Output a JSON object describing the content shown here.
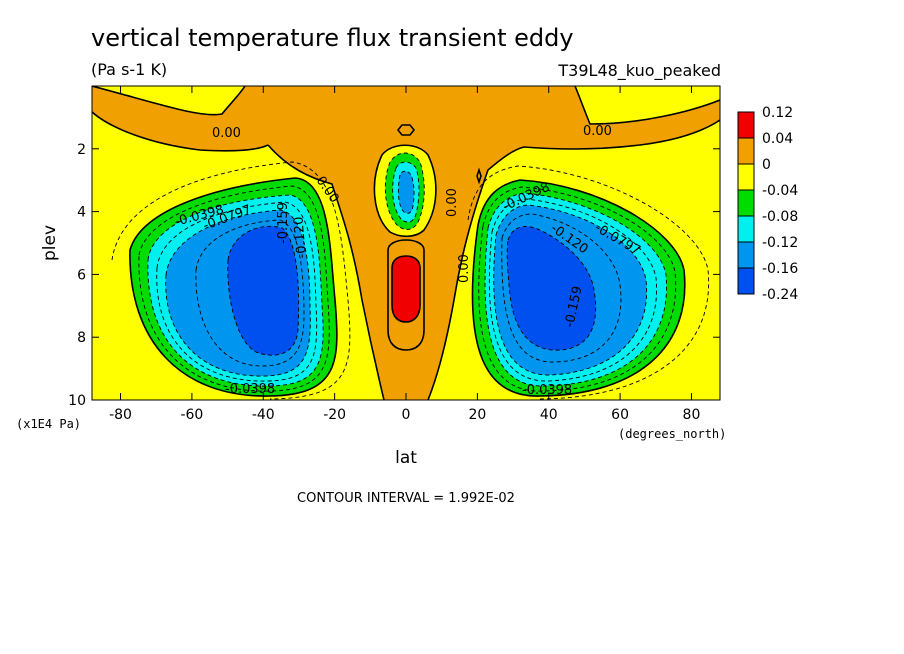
{
  "chart_data": {
    "type": "contour",
    "title": "vertical temperature flux transient eddy",
    "units": "(Pa s-1 K)",
    "run_label": "T39L48_kuo_peaked",
    "xlabel": "lat",
    "ylabel": "plev",
    "x_unit": "(degrees_north)",
    "y_unit": "(x1E4 Pa)",
    "xlim": [
      -88,
      88
    ],
    "ylim": [
      10,
      0
    ],
    "x_ticks": [
      -80,
      -60,
      -40,
      -20,
      0,
      20,
      40,
      60,
      80
    ],
    "x_tick_labels": [
      "-80",
      "-60",
      "-40",
      "-20",
      "0",
      "20",
      "40",
      "60",
      "80"
    ],
    "y_ticks": [
      2,
      4,
      6,
      8,
      10
    ],
    "y_tick_labels": [
      "2",
      "4",
      "6",
      "8",
      "10"
    ],
    "contour_interval_text": "CONTOUR INTERVAL = 1.992E-02",
    "contour_labels": [
      "0.00",
      "0.00",
      "0.00",
      "0.00",
      "0.00",
      "-0.0398",
      "-0.0797",
      "-0.159",
      "-0.120",
      "-0.0398",
      "-0.120",
      "-0.0797",
      "-0.159",
      "-0.0398"
    ],
    "colorbar": {
      "labels": [
        "0.12",
        "0.04",
        "0",
        "-0.04",
        "-0.08",
        "-0.12",
        "-0.16",
        "-0.24"
      ],
      "colors": [
        "#f00000",
        "#f0a000",
        "#ffff00",
        "#00dc00",
        "#00f0f0",
        "#0096f0",
        "#0050f0"
      ]
    },
    "colors": {
      "red": "#f00000",
      "orange": "#f0a000",
      "yellow": "#ffff00",
      "green": "#00dc00",
      "cyan": "#00f0f0",
      "lightblue": "#0096f0",
      "blue": "#0050f0"
    }
  }
}
